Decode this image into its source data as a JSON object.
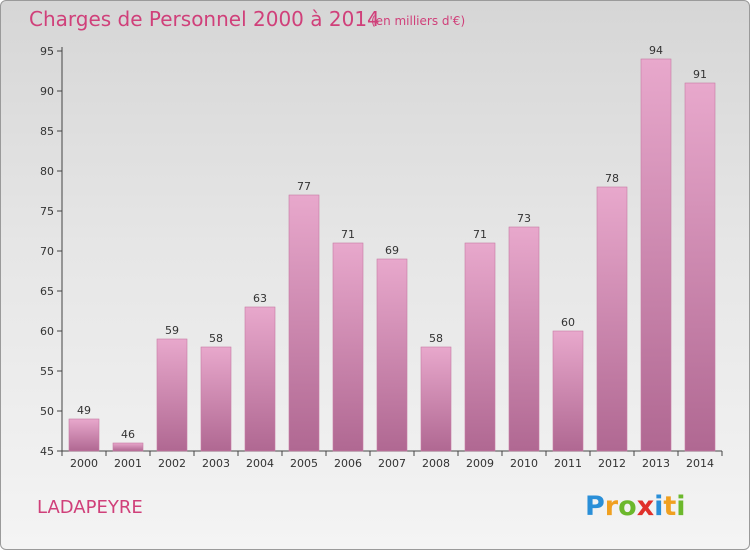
{
  "title": "Charges de Personnel 2000 à 2014",
  "subtitle": "(en milliers d'€)",
  "commune": "LADAPEYRE",
  "logo": {
    "text": "Proxiti",
    "letters": [
      {
        "ch": "P",
        "color": "#2a8fd8"
      },
      {
        "ch": "r",
        "color": "#f0a020"
      },
      {
        "ch": "o",
        "color": "#6cb82c"
      },
      {
        "ch": "x",
        "color": "#e0302a"
      },
      {
        "ch": "i",
        "color": "#2a8fd8"
      },
      {
        "ch": "t",
        "color": "#f0a020"
      },
      {
        "ch": "i",
        "color": "#6cb82c"
      }
    ]
  },
  "colors": {
    "title": "#d0407a",
    "bar_top": "#e8a8cc",
    "bar_bottom": "#b06892",
    "bar_edge": "#c77aa3"
  },
  "chart_data": {
    "type": "bar",
    "title": "Charges de Personnel 2000 à 2014",
    "subtitle": "(en milliers d'€)",
    "categories": [
      "2000",
      "2001",
      "2002",
      "2003",
      "2004",
      "2005",
      "2006",
      "2007",
      "2008",
      "2009",
      "2010",
      "2011",
      "2012",
      "2013",
      "2014"
    ],
    "values": [
      49,
      46,
      59,
      58,
      63,
      77,
      71,
      69,
      58,
      71,
      73,
      60,
      78,
      94,
      91
    ],
    "ylim": [
      45,
      95
    ],
    "yticks": [
      45,
      50,
      55,
      60,
      65,
      70,
      75,
      80,
      85,
      90,
      95
    ],
    "grid": false,
    "data_labels": true
  }
}
